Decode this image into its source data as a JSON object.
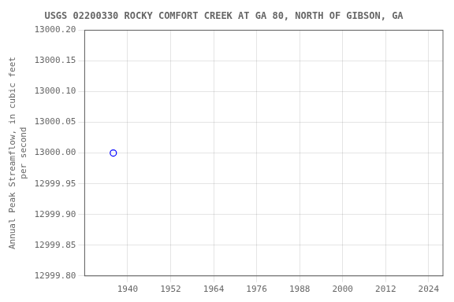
{
  "chart_data": {
    "type": "scatter",
    "title": "USGS 02200330 ROCKY COMFORT CREEK AT GA 80, NORTH OF GIBSON, GA",
    "ylabel": "Annual Peak Streamflow, in cubic feet\nper second",
    "x": [
      1936
    ],
    "values": [
      13000.0
    ],
    "color": "blue",
    "marker": "circle",
    "xlim": [
      1928,
      2028
    ],
    "ylim": [
      12999.8,
      13000.2
    ],
    "xticks": [
      1940,
      1952,
      1964,
      1976,
      1988,
      2000,
      2012,
      2024
    ],
    "yticks": [
      {
        "value": 12999.8,
        "label": "12999.80"
      },
      {
        "value": 12999.85,
        "label": "12999.85"
      },
      {
        "value": 12999.9,
        "label": "12999.90"
      },
      {
        "value": 12999.95,
        "label": "12999.95"
      },
      {
        "value": 13000.0,
        "label": "13000.00"
      },
      {
        "value": 13000.05,
        "label": "13000.05"
      },
      {
        "value": 13000.1,
        "label": "13000.10"
      },
      {
        "value": 13000.15,
        "label": "13000.15"
      },
      {
        "value": 13000.2,
        "label": "13000.20"
      }
    ],
    "grid": true
  }
}
